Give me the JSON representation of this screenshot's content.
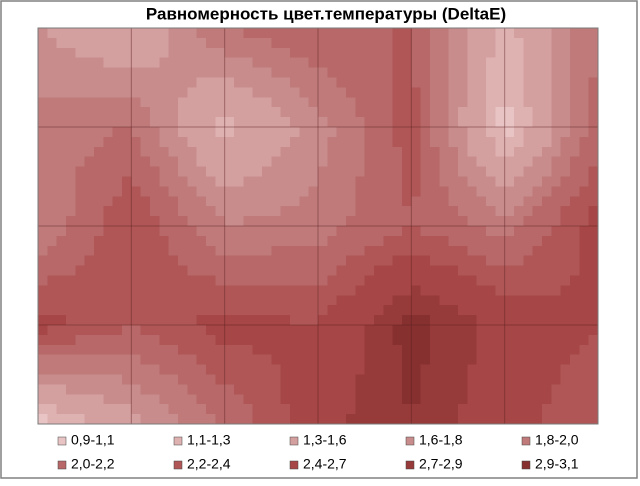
{
  "chart_data": {
    "type": "contour",
    "title": "Равномерность цвет.температуры (DeltaE)",
    "z": [
      [
        1.6,
        1.3,
        2.0,
        2.2,
        2.2,
        1.2,
        2.0
      ],
      [
        1.9,
        2.0,
        1.2,
        1.7,
        2.3,
        1.0,
        2.1
      ],
      [
        1.8,
        2.4,
        1.8,
        1.9,
        2.2,
        1.9,
        2.5
      ],
      [
        2.5,
        2.2,
        2.5,
        2.4,
        3.0,
        2.6,
        2.4
      ],
      [
        1.0,
        1.5,
        2.0,
        2.6,
        2.9,
        2.5,
        2.2
      ]
    ],
    "levels": [
      0.9,
      1.1,
      1.3,
      1.6,
      1.8,
      2.0,
      2.2,
      2.4,
      2.7,
      2.9,
      3.1
    ],
    "series": [
      {
        "name": "0,9-1,1",
        "color": "#e8c4c4"
      },
      {
        "name": "1,1-1,3",
        "color": "#dfb2b2"
      },
      {
        "name": "1,3-1,6",
        "color": "#d49f9f"
      },
      {
        "name": "1,6-1,8",
        "color": "#c98c8c"
      },
      {
        "name": "1,8-2,0",
        "color": "#c07a7a"
      },
      {
        "name": "2,0-2,2",
        "color": "#b86868"
      },
      {
        "name": "2,2-2,4",
        "color": "#b05656"
      },
      {
        "name": "2,4-2,7",
        "color": "#a64646"
      },
      {
        "name": "2,7-2,9",
        "color": "#973a3a"
      },
      {
        "name": "2,9-3,1",
        "color": "#873030"
      }
    ],
    "grid": true
  }
}
